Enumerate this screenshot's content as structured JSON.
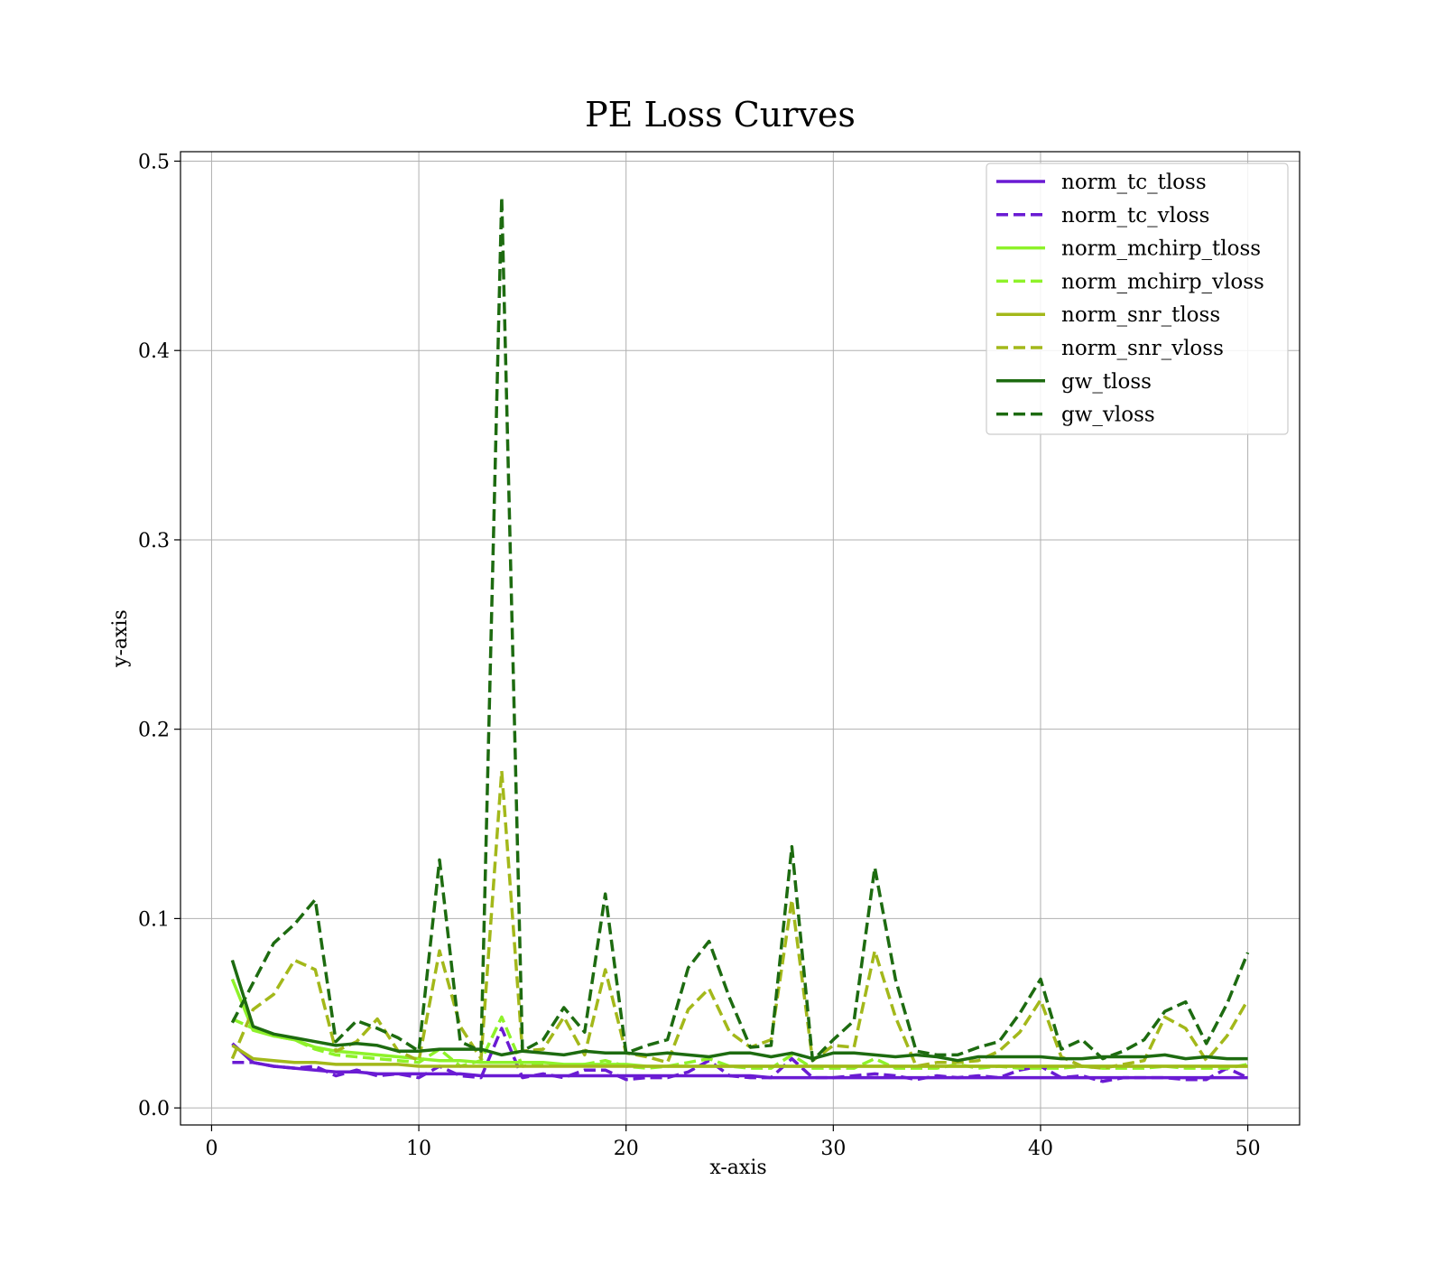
{
  "chart_data": {
    "type": "line",
    "title": "PE Loss Curves",
    "xlabel": "x-axis",
    "ylabel": "y-axis",
    "xlim": [
      -1.5,
      52.5
    ],
    "ylim": [
      -0.009,
      0.505
    ],
    "xticks": [
      0,
      10,
      20,
      30,
      40,
      50
    ],
    "xtick_labels": [
      "0",
      "10",
      "20",
      "30",
      "40",
      "50"
    ],
    "yticks": [
      0.0,
      0.1,
      0.2,
      0.3,
      0.4,
      0.5
    ],
    "ytick_labels": [
      "0.0",
      "0.1",
      "0.2",
      "0.3",
      "0.4",
      "0.5"
    ],
    "grid": true,
    "legend_position": "top-right",
    "x": [
      1,
      2,
      3,
      4,
      5,
      6,
      7,
      8,
      9,
      10,
      11,
      12,
      13,
      14,
      15,
      16,
      17,
      18,
      19,
      20,
      21,
      22,
      23,
      24,
      25,
      26,
      27,
      28,
      29,
      30,
      31,
      32,
      33,
      34,
      35,
      36,
      37,
      38,
      39,
      40,
      41,
      42,
      43,
      44,
      45,
      46,
      47,
      48,
      49,
      50
    ],
    "series": [
      {
        "name": "norm_tc_tloss",
        "color": "#6a1bd3",
        "style": "solid",
        "values": [
          0.034,
          0.024,
          0.022,
          0.021,
          0.02,
          0.019,
          0.019,
          0.018,
          0.018,
          0.018,
          0.018,
          0.018,
          0.017,
          0.017,
          0.017,
          0.017,
          0.017,
          0.017,
          0.017,
          0.017,
          0.017,
          0.017,
          0.017,
          0.017,
          0.017,
          0.017,
          0.016,
          0.016,
          0.016,
          0.016,
          0.016,
          0.016,
          0.016,
          0.016,
          0.016,
          0.016,
          0.016,
          0.016,
          0.016,
          0.016,
          0.016,
          0.016,
          0.016,
          0.016,
          0.016,
          0.016,
          0.016,
          0.016,
          0.016,
          0.016
        ]
      },
      {
        "name": "norm_tc_vloss",
        "color": "#6a1bd3",
        "style": "dashed",
        "values": [
          0.024,
          0.024,
          0.022,
          0.021,
          0.022,
          0.017,
          0.02,
          0.017,
          0.018,
          0.016,
          0.022,
          0.017,
          0.016,
          0.042,
          0.016,
          0.018,
          0.016,
          0.02,
          0.02,
          0.015,
          0.016,
          0.016,
          0.019,
          0.025,
          0.017,
          0.016,
          0.016,
          0.026,
          0.016,
          0.016,
          0.017,
          0.018,
          0.017,
          0.015,
          0.017,
          0.016,
          0.017,
          0.016,
          0.02,
          0.022,
          0.016,
          0.017,
          0.014,
          0.016,
          0.016,
          0.016,
          0.015,
          0.015,
          0.021,
          0.016
        ]
      },
      {
        "name": "norm_mchirp_tloss",
        "color": "#8ef22a",
        "style": "solid",
        "values": [
          0.068,
          0.041,
          0.038,
          0.036,
          0.032,
          0.03,
          0.029,
          0.028,
          0.027,
          0.026,
          0.025,
          0.025,
          0.024,
          0.024,
          0.024,
          0.024,
          0.023,
          0.023,
          0.023,
          0.023,
          0.022,
          0.022,
          0.022,
          0.022,
          0.022,
          0.022,
          0.022,
          0.022,
          0.022,
          0.022,
          0.022,
          0.022,
          0.022,
          0.022,
          0.022,
          0.022,
          0.022,
          0.022,
          0.022,
          0.022,
          0.022,
          0.022,
          0.022,
          0.022,
          0.022,
          0.022,
          0.022,
          0.022,
          0.022,
          0.022
        ]
      },
      {
        "name": "norm_mchirp_vloss",
        "color": "#8ef22a",
        "style": "dashed",
        "values": [
          0.047,
          0.042,
          0.038,
          0.036,
          0.031,
          0.028,
          0.027,
          0.026,
          0.025,
          0.024,
          0.031,
          0.022,
          0.025,
          0.048,
          0.022,
          0.023,
          0.022,
          0.023,
          0.025,
          0.022,
          0.021,
          0.022,
          0.024,
          0.026,
          0.022,
          0.021,
          0.021,
          0.028,
          0.021,
          0.021,
          0.021,
          0.026,
          0.021,
          0.021,
          0.021,
          0.023,
          0.021,
          0.022,
          0.021,
          0.021,
          0.021,
          0.022,
          0.021,
          0.021,
          0.021,
          0.022,
          0.021,
          0.021,
          0.021,
          0.023
        ]
      },
      {
        "name": "norm_snr_tloss",
        "color": "#a3b81a",
        "style": "solid",
        "values": [
          0.033,
          0.026,
          0.025,
          0.024,
          0.024,
          0.023,
          0.023,
          0.023,
          0.023,
          0.022,
          0.022,
          0.022,
          0.022,
          0.022,
          0.022,
          0.022,
          0.022,
          0.022,
          0.022,
          0.022,
          0.022,
          0.022,
          0.022,
          0.022,
          0.022,
          0.022,
          0.022,
          0.022,
          0.022,
          0.022,
          0.022,
          0.022,
          0.022,
          0.022,
          0.022,
          0.022,
          0.022,
          0.022,
          0.022,
          0.022,
          0.022,
          0.022,
          0.022,
          0.022,
          0.022,
          0.022,
          0.022,
          0.022,
          0.022,
          0.022
        ]
      },
      {
        "name": "norm_snr_vloss",
        "color": "#a3b81a",
        "style": "dashed",
        "values": [
          0.026,
          0.052,
          0.06,
          0.078,
          0.073,
          0.03,
          0.035,
          0.047,
          0.03,
          0.025,
          0.083,
          0.043,
          0.026,
          0.178,
          0.03,
          0.031,
          0.048,
          0.028,
          0.073,
          0.029,
          0.027,
          0.024,
          0.052,
          0.063,
          0.04,
          0.032,
          0.036,
          0.11,
          0.025,
          0.033,
          0.032,
          0.083,
          0.048,
          0.022,
          0.024,
          0.024,
          0.025,
          0.03,
          0.04,
          0.057,
          0.027,
          0.022,
          0.021,
          0.023,
          0.025,
          0.048,
          0.042,
          0.025,
          0.038,
          0.057
        ]
      },
      {
        "name": "gw_tloss",
        "color": "#1d6b10",
        "style": "solid",
        "values": [
          0.078,
          0.043,
          0.039,
          0.037,
          0.035,
          0.033,
          0.034,
          0.033,
          0.03,
          0.03,
          0.031,
          0.031,
          0.031,
          0.028,
          0.03,
          0.029,
          0.028,
          0.03,
          0.029,
          0.029,
          0.028,
          0.029,
          0.028,
          0.027,
          0.029,
          0.029,
          0.027,
          0.029,
          0.026,
          0.029,
          0.029,
          0.028,
          0.027,
          0.028,
          0.027,
          0.025,
          0.027,
          0.027,
          0.027,
          0.027,
          0.026,
          0.026,
          0.027,
          0.027,
          0.027,
          0.028,
          0.026,
          0.027,
          0.026,
          0.026
        ]
      },
      {
        "name": "gw_vloss",
        "color": "#1d6b10",
        "style": "dashed",
        "values": [
          0.045,
          0.066,
          0.087,
          0.097,
          0.11,
          0.035,
          0.046,
          0.042,
          0.037,
          0.03,
          0.131,
          0.035,
          0.03,
          0.481,
          0.03,
          0.036,
          0.053,
          0.04,
          0.113,
          0.029,
          0.033,
          0.036,
          0.074,
          0.088,
          0.058,
          0.032,
          0.033,
          0.138,
          0.025,
          0.036,
          0.046,
          0.127,
          0.068,
          0.03,
          0.028,
          0.028,
          0.032,
          0.035,
          0.05,
          0.068,
          0.031,
          0.036,
          0.026,
          0.03,
          0.036,
          0.051,
          0.056,
          0.034,
          0.055,
          0.082
        ]
      }
    ]
  }
}
